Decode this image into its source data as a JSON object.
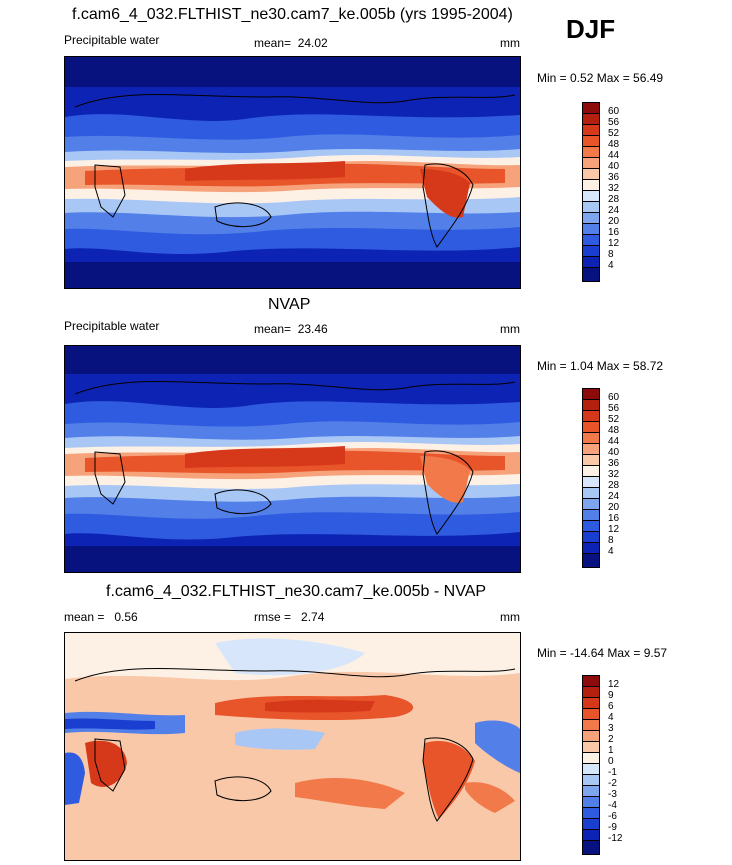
{
  "season": "DJF",
  "panels": [
    {
      "title": "f.cam6_4_032.FLTHIST_ne30.cam7_ke.005b (yrs 1995-2004)",
      "left_label": "Precipitable water",
      "mean_label": "mean=",
      "mean_value": "24.02",
      "units": "mm",
      "minmax": "Min =   0.52 Max =  56.49"
    },
    {
      "title": "NVAP",
      "left_label": "Precipitable water",
      "mean_label": "mean=",
      "mean_value": "23.46",
      "units": "mm",
      "minmax": "Min =   1.04 Max =  58.72"
    },
    {
      "title": "f.cam6_4_032.FLTHIST_ne30.cam7_ke.005b - NVAP",
      "left_label": "mean =",
      "left_value": "0.56",
      "mean_label": "rmse =",
      "mean_value": "2.74",
      "units": "mm",
      "minmax": "Min = -14.64 Max =   9.57"
    }
  ],
  "colorbars": {
    "abs": {
      "ticks": [
        "60",
        "56",
        "52",
        "48",
        "44",
        "40",
        "36",
        "32",
        "28",
        "24",
        "20",
        "16",
        "12",
        "8",
        "4"
      ],
      "colors": [
        "#8c0c0c",
        "#b3200e",
        "#d6381a",
        "#e8552a",
        "#f27a4a",
        "#f6a27a",
        "#f9c8a8",
        "#fdf1e6",
        "#d7e6fb",
        "#a9c7f5",
        "#7ea6ef",
        "#527fe8",
        "#2f5be0",
        "#1a3ed0",
        "#0c23b4",
        "#08127e"
      ]
    },
    "diff": {
      "ticks": [
        "12",
        "9",
        "6",
        "4",
        "3",
        "2",
        "1",
        "0",
        "-1",
        "-2",
        "-3",
        "-4",
        "-6",
        "-9",
        "-12"
      ],
      "colors": [
        "#8c0c0c",
        "#b3200e",
        "#d6381a",
        "#e8552a",
        "#f27a4a",
        "#f6a27a",
        "#f9c8a8",
        "#fdf1e6",
        "#d7e6fb",
        "#a9c7f5",
        "#7ea6ef",
        "#527fe8",
        "#2f5be0",
        "#1a3ed0",
        "#0c23b4",
        "#08127e"
      ]
    }
  }
}
